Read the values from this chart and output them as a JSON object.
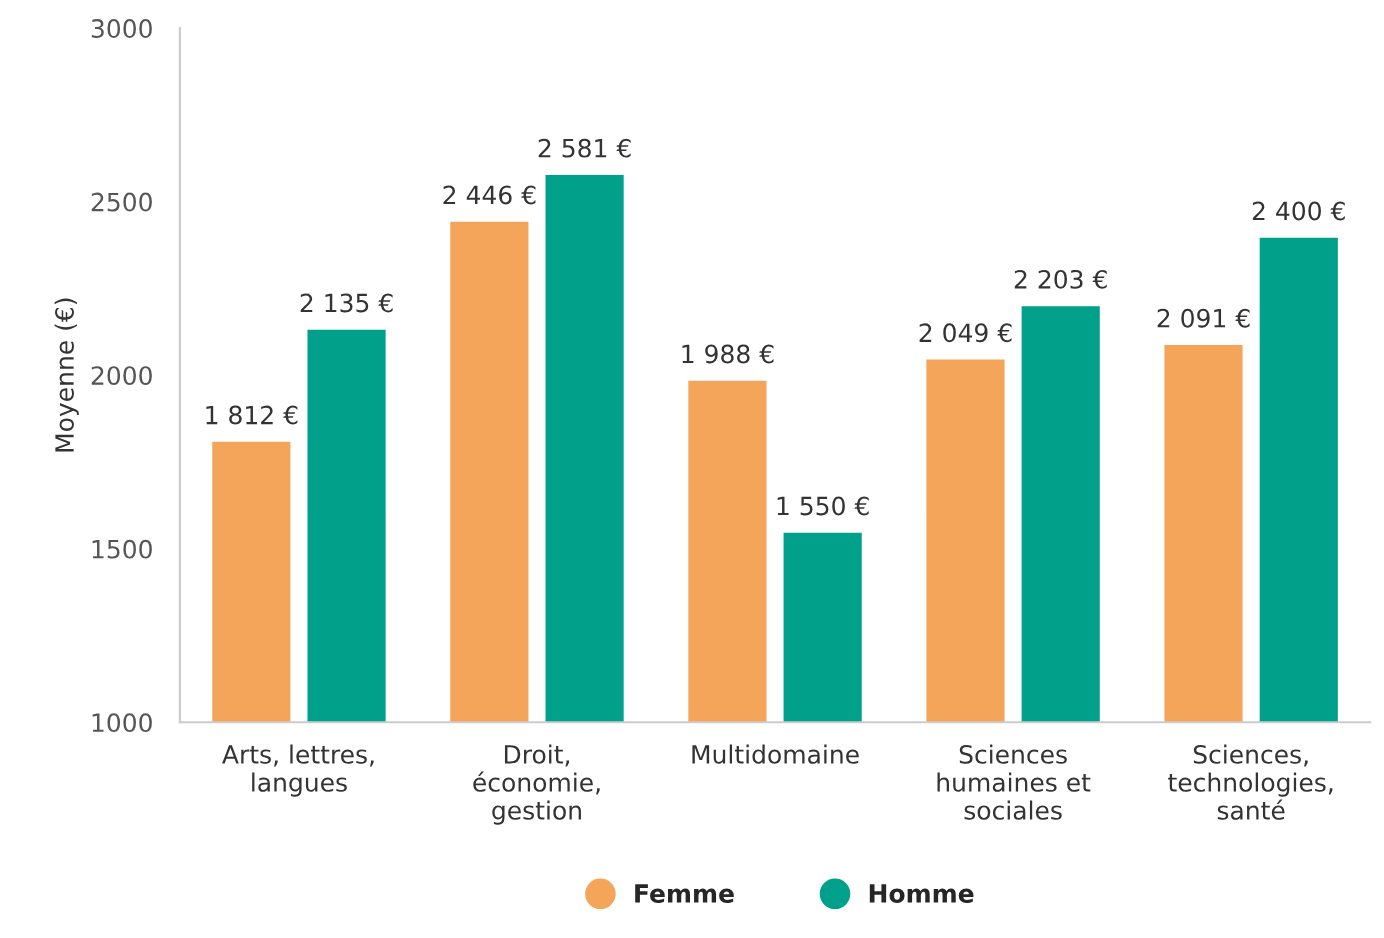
{
  "chart_data": {
    "type": "bar",
    "ylabel": "Moyenne (€)",
    "categories": [
      "Arts, lettres,\nlangues",
      "Droit,\néconomie,\ngestion",
      "Multidomaine",
      "Sciences\nhumaines et\nsociales",
      "Sciences,\ntechnologies,\nsanté"
    ],
    "series": [
      {
        "name": "Femme",
        "color": "#f4a55a",
        "values": [
          1812,
          2446,
          1988,
          2049,
          2091
        ],
        "value_labels": [
          "1 812 €",
          "2 446 €",
          "1 988 €",
          "2 049 €",
          "2 091 €"
        ]
      },
      {
        "name": "Homme",
        "color": "#00a08a",
        "values": [
          2135,
          2581,
          1550,
          2203,
          2400
        ],
        "value_labels": [
          "2 135 €",
          "2 581 €",
          "1 550 €",
          "2 203 €",
          "2 400 €"
        ]
      }
    ],
    "ylim": [
      1000,
      3000
    ],
    "yticks": [
      1000,
      1500,
      2000,
      2500,
      3000
    ],
    "grid": false,
    "legend": "bottom"
  }
}
